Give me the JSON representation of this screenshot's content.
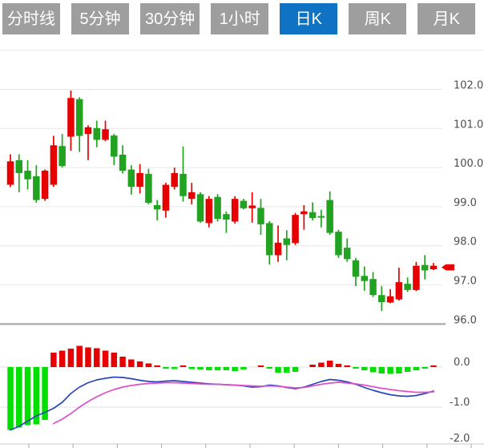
{
  "tabs": [
    {
      "label": "分时线",
      "active": false
    },
    {
      "label": "5分钟",
      "active": false
    },
    {
      "label": "30分钟",
      "active": false
    },
    {
      "label": "1小时",
      "active": false
    },
    {
      "label": "日K",
      "active": true
    },
    {
      "label": "周K",
      "active": false
    },
    {
      "label": "月K",
      "active": false
    }
  ],
  "colors": {
    "candle_up": "#e60000",
    "candle_down": "#21a321",
    "macd_up": "#e60000",
    "macd_down": "#00df00",
    "dif_line": "#2a46b8",
    "dea_line": "#e14fc8",
    "tab_bg": "#9e9e9e",
    "tab_active_bg": "#0f72c2",
    "grid": "#e7e7e7",
    "chart_floor": "#b0b0b0",
    "axis_line": "#c9c9c9",
    "axis_text": "#4d4d4d"
  },
  "chart_data": {
    "type": "candlestick",
    "price_panel": {
      "ylim": [
        96,
        103
      ],
      "tick_labels": [
        {
          "text": "102.0",
          "value": 102
        },
        {
          "text": "101.0",
          "value": 101
        },
        {
          "text": "100.0",
          "value": 100
        },
        {
          "text": "99.0",
          "value": 99
        },
        {
          "text": "98.0",
          "value": 98
        },
        {
          "text": "97.0",
          "value": 97
        },
        {
          "text": "96.0",
          "value": 96
        }
      ],
      "gridlines": [
        103,
        102,
        101,
        100,
        99,
        98,
        97,
        96
      ],
      "candles_ohlc": [
        [
          99.56,
          100.34,
          99.5,
          100.16
        ],
        [
          100.19,
          100.34,
          99.37,
          99.86
        ],
        [
          99.92,
          100.19,
          99.44,
          99.7
        ],
        [
          99.78,
          100.06,
          99.1,
          99.17
        ],
        [
          99.2,
          99.95,
          99.15,
          99.92
        ],
        [
          99.56,
          100.81,
          99.51,
          100.57
        ],
        [
          100.55,
          100.86,
          100.0,
          100.04
        ],
        [
          100.79,
          101.97,
          100.43,
          101.78
        ],
        [
          101.75,
          101.8,
          100.4,
          100.81
        ],
        [
          100.86,
          101.08,
          100.19,
          101.03
        ],
        [
          101.01,
          101.2,
          100.52,
          100.71
        ],
        [
          100.71,
          101.2,
          100.67,
          100.98
        ],
        [
          100.82,
          100.86,
          100.06,
          100.28
        ],
        [
          100.33,
          100.57,
          99.85,
          99.92
        ],
        [
          99.95,
          100.06,
          99.31,
          99.51
        ],
        [
          99.51,
          100.09,
          99.34,
          99.86
        ],
        [
          99.84,
          99.97,
          99.06,
          99.1
        ],
        [
          99.04,
          99.17,
          98.65,
          98.93
        ],
        [
          98.9,
          99.61,
          98.72,
          99.56
        ],
        [
          99.51,
          100.0,
          99.44,
          99.86
        ],
        [
          99.84,
          100.54,
          99.13,
          99.27
        ],
        [
          99.2,
          99.61,
          99.06,
          99.37
        ],
        [
          99.32,
          99.37,
          98.59,
          98.62
        ],
        [
          98.58,
          99.27,
          98.47,
          99.2
        ],
        [
          99.25,
          99.32,
          98.62,
          98.69
        ],
        [
          98.81,
          98.88,
          98.33,
          98.67
        ],
        [
          98.62,
          99.27,
          98.57,
          99.2
        ],
        [
          99.15,
          99.2,
          98.93,
          98.96
        ],
        [
          98.96,
          99.37,
          98.59,
          99.03
        ],
        [
          98.97,
          99.2,
          98.28,
          98.55
        ],
        [
          98.58,
          98.63,
          97.52,
          97.76
        ],
        [
          97.76,
          98.52,
          97.59,
          98.08
        ],
        [
          98.19,
          98.4,
          97.63,
          98.02
        ],
        [
          98.07,
          98.84,
          98.02,
          98.79
        ],
        [
          98.81,
          99.04,
          98.41,
          98.88
        ],
        [
          98.86,
          99.11,
          98.65,
          98.71
        ],
        [
          98.76,
          98.92,
          98.47,
          98.72
        ],
        [
          99.17,
          99.39,
          98.28,
          98.33
        ],
        [
          98.36,
          98.41,
          97.69,
          97.76
        ],
        [
          97.95,
          98.19,
          97.59,
          97.66
        ],
        [
          97.63,
          97.69,
          96.97,
          97.21
        ],
        [
          97.23,
          97.47,
          96.85,
          97.1
        ],
        [
          97.15,
          97.33,
          96.69,
          96.74
        ],
        [
          96.74,
          96.97,
          96.33,
          96.56
        ],
        [
          96.55,
          96.89,
          96.53,
          96.71
        ],
        [
          96.63,
          97.44,
          96.6,
          97.07
        ],
        [
          97.03,
          97.19,
          96.82,
          96.87
        ],
        [
          96.87,
          97.59,
          96.84,
          97.49
        ],
        [
          97.51,
          97.76,
          97.14,
          97.37
        ],
        [
          97.4,
          97.56,
          97.38,
          97.49
        ]
      ],
      "last_price_marker": {
        "value": 97.45
      }
    },
    "macd_panel": {
      "ylim": [
        -2.0,
        0.6
      ],
      "tick_labels": [
        {
          "text": "0.0",
          "value": 0
        },
        {
          "text": "-1.0",
          "value": -1
        },
        {
          "text": "-2.0",
          "value": -2
        }
      ],
      "histogram": [
        -1.57,
        -1.51,
        -1.45,
        -1.43,
        -1.32,
        0.36,
        0.41,
        0.46,
        0.53,
        0.49,
        0.47,
        0.41,
        0.36,
        0.26,
        0.19,
        0.14,
        0.09,
        0.03,
        -0.04,
        -0.05,
        0.02,
        -0.05,
        -0.06,
        -0.08,
        -0.08,
        -0.08,
        -0.1,
        -0.06,
        -0.01,
        0.04,
        -0.02,
        -0.14,
        -0.14,
        -0.12,
        0.01,
        0.06,
        0.11,
        0.16,
        0.08,
        0.03,
        -0.03,
        -0.08,
        -0.13,
        -0.16,
        -0.17,
        -0.16,
        -0.12,
        -0.08,
        -0.04,
        0.04
      ],
      "dif": [
        -1.57,
        -1.48,
        -1.35,
        -1.22,
        -1.13,
        -1.03,
        -0.88,
        -0.66,
        -0.5,
        -0.39,
        -0.32,
        -0.28,
        -0.25,
        -0.26,
        -0.29,
        -0.33,
        -0.36,
        -0.37,
        -0.35,
        -0.34,
        -0.36,
        -0.38,
        -0.4,
        -0.42,
        -0.43,
        -0.44,
        -0.45,
        -0.47,
        -0.5,
        -0.49,
        -0.45,
        -0.47,
        -0.51,
        -0.54,
        -0.5,
        -0.43,
        -0.36,
        -0.31,
        -0.33,
        -0.37,
        -0.43,
        -0.51,
        -0.58,
        -0.64,
        -0.69,
        -0.72,
        -0.73,
        -0.71,
        -0.66,
        -0.6
      ],
      "dea": [
        null,
        null,
        null,
        null,
        null,
        -1.41,
        -1.3,
        -1.16,
        -1.0,
        -0.86,
        -0.74,
        -0.64,
        -0.56,
        -0.5,
        -0.46,
        -0.43,
        -0.41,
        -0.4,
        -0.39,
        -0.39,
        -0.4,
        -0.41,
        -0.42,
        -0.43,
        -0.43,
        -0.44,
        -0.45,
        -0.46,
        -0.47,
        -0.48,
        -0.47,
        -0.48,
        -0.5,
        -0.52,
        -0.51,
        -0.47,
        -0.43,
        -0.4,
        -0.38,
        -0.4,
        -0.42,
        -0.45,
        -0.49,
        -0.53,
        -0.56,
        -0.59,
        -0.61,
        -0.63,
        -0.63,
        -0.62
      ]
    }
  }
}
